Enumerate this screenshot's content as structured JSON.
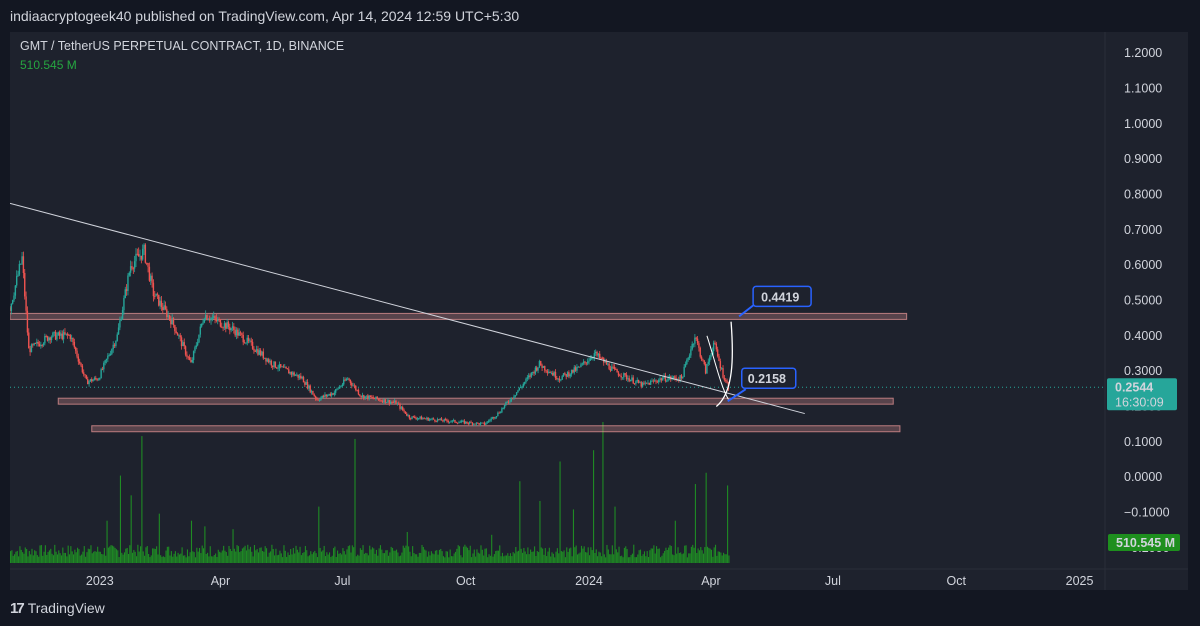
{
  "header": {
    "publisher_line": "indiaacryptogeek40 published on TradingView.com, Apr 14, 2024 12:59 UTC+5:30"
  },
  "symbol": {
    "title": "GMT / TetherUS PERPETUAL CONTRACT, 1D, BINANCE",
    "volume": "510.545 M"
  },
  "footer": {
    "brand": "TradingView",
    "logo": "17"
  },
  "colors": {
    "background": "#131722",
    "panel": "#1e222d",
    "up": "#26a69a",
    "down": "#ef5350",
    "volume": "#1f8b24",
    "zone": "#ef9a9a",
    "annotation": "#2962ff"
  },
  "chart_data": {
    "type": "candlestick",
    "title": "GMT / TetherUS PERPETUAL CONTRACT, 1D, BINANCE",
    "ylim": [
      -0.26,
      1.26
    ],
    "y_ticks": [
      "1.2000",
      "1.1000",
      "1.0000",
      "0.9000",
      "0.8000",
      "0.7000",
      "0.6000",
      "0.5000",
      "0.4000",
      "0.3000",
      "0.2000",
      "0.1000",
      "0.0000",
      "−0.1000",
      "−0.2000"
    ],
    "x_ticks": [
      "2023",
      "Apr",
      "Jul",
      "Oct",
      "2024",
      "Apr",
      "Jul",
      "Oct",
      "2025"
    ],
    "x_range": [
      "2022-10-26",
      "2025-01-20"
    ],
    "last_price": "0.2544",
    "countdown": "16:30:09",
    "volume_label": "510.545 M",
    "price_path": [
      [
        "2022-10-26",
        0.48
      ],
      [
        "2022-11-04",
        0.62
      ],
      [
        "2022-11-09",
        0.36
      ],
      [
        "2022-11-25",
        0.4
      ],
      [
        "2022-12-10",
        0.4
      ],
      [
        "2022-12-22",
        0.27
      ],
      [
        "2022-12-31",
        0.28
      ],
      [
        "2023-01-14",
        0.4
      ],
      [
        "2023-01-24",
        0.6
      ],
      [
        "2023-02-03",
        0.64
      ],
      [
        "2023-02-10",
        0.52
      ],
      [
        "2023-02-24",
        0.44
      ],
      [
        "2023-03-10",
        0.32
      ],
      [
        "2023-03-20",
        0.46
      ],
      [
        "2023-04-10",
        0.42
      ],
      [
        "2023-04-22",
        0.38
      ],
      [
        "2023-05-10",
        0.32
      ],
      [
        "2023-06-01",
        0.28
      ],
      [
        "2023-06-12",
        0.22
      ],
      [
        "2023-06-25",
        0.24
      ],
      [
        "2023-07-05",
        0.28
      ],
      [
        "2023-07-15",
        0.23
      ],
      [
        "2023-08-10",
        0.21
      ],
      [
        "2023-08-20",
        0.17
      ],
      [
        "2023-09-15",
        0.16
      ],
      [
        "2023-10-15",
        0.15
      ],
      [
        "2023-10-25",
        0.18
      ],
      [
        "2023-11-10",
        0.25
      ],
      [
        "2023-11-25",
        0.32
      ],
      [
        "2023-12-10",
        0.28
      ],
      [
        "2023-12-25",
        0.31
      ],
      [
        "2024-01-05",
        0.35
      ],
      [
        "2024-01-20",
        0.3
      ],
      [
        "2024-02-10",
        0.26
      ],
      [
        "2024-02-25",
        0.28
      ],
      [
        "2024-03-10",
        0.28
      ],
      [
        "2024-03-20",
        0.4
      ],
      [
        "2024-03-28",
        0.3
      ],
      [
        "2024-04-03",
        0.38
      ],
      [
        "2024-04-10",
        0.29
      ],
      [
        "2024-04-14",
        0.2544
      ]
    ],
    "volume_spikes": [
      [
        "2022-12-20",
        0.12
      ],
      [
        "2023-01-06",
        0.3
      ],
      [
        "2023-01-16",
        0.62
      ],
      [
        "2023-01-24",
        0.48
      ],
      [
        "2023-02-01",
        0.9
      ],
      [
        "2023-02-14",
        0.35
      ],
      [
        "2023-03-10",
        0.3
      ],
      [
        "2023-03-20",
        0.26
      ],
      [
        "2023-04-10",
        0.24
      ],
      [
        "2023-06-13",
        0.4
      ],
      [
        "2023-07-10",
        0.88
      ],
      [
        "2023-08-18",
        0.22
      ],
      [
        "2023-10-20",
        0.2
      ],
      [
        "2023-11-10",
        0.58
      ],
      [
        "2023-11-25",
        0.44
      ],
      [
        "2023-12-10",
        0.72
      ],
      [
        "2023-12-20",
        0.38
      ],
      [
        "2024-01-04",
        0.8
      ],
      [
        "2024-01-11",
        1.0
      ],
      [
        "2024-01-20",
        0.4
      ],
      [
        "2024-03-05",
        0.3
      ],
      [
        "2024-03-20",
        0.56
      ],
      [
        "2024-03-28",
        0.64
      ],
      [
        "2024-04-13",
        0.55
      ]
    ],
    "horizontal_zones": [
      {
        "y": 0.455,
        "from": "2022-10-26",
        "to": "2024-08-25"
      },
      {
        "y": 0.215,
        "from": "2022-12-01",
        "to": "2024-08-15"
      },
      {
        "y": 0.137,
        "from": "2022-12-26",
        "to": "2024-08-20"
      }
    ],
    "trendline": {
      "from": [
        "2022-10-26",
        0.775
      ],
      "to": [
        "2024-06-10",
        0.18
      ]
    },
    "annotations": [
      {
        "text": "0.4419",
        "anchor": [
          "2024-04-22",
          0.455
        ]
      },
      {
        "text": "0.2158",
        "anchor": [
          "2024-04-18",
          0.215
        ]
      }
    ]
  }
}
